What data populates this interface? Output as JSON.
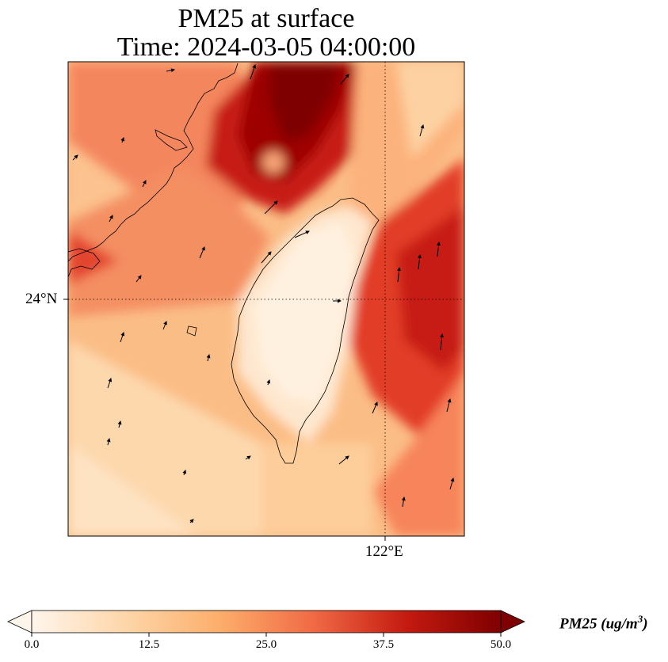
{
  "header": {
    "title_line1": "PM25 at surface",
    "title_line2": "Time: 2024-03-05 04:00:00"
  },
  "map": {
    "lat_label": "24°N",
    "lon_label": "122°E",
    "gridlines": true,
    "field": "PM25",
    "features": [
      "Taiwan coastline",
      "Fujian coastline",
      "wind-vectors"
    ]
  },
  "colorbar": {
    "ticks": [
      "0.0",
      "12.5",
      "25.0",
      "37.5",
      "50.0"
    ],
    "label_main": "PM25 (ug/m",
    "label_exp": "3",
    "label_close": ")",
    "colors": [
      "#fff5eb",
      "#fdd6a9",
      "#fdae6b",
      "#f16a45",
      "#c41a10",
      "#7f0000"
    ],
    "extend": "both"
  }
}
